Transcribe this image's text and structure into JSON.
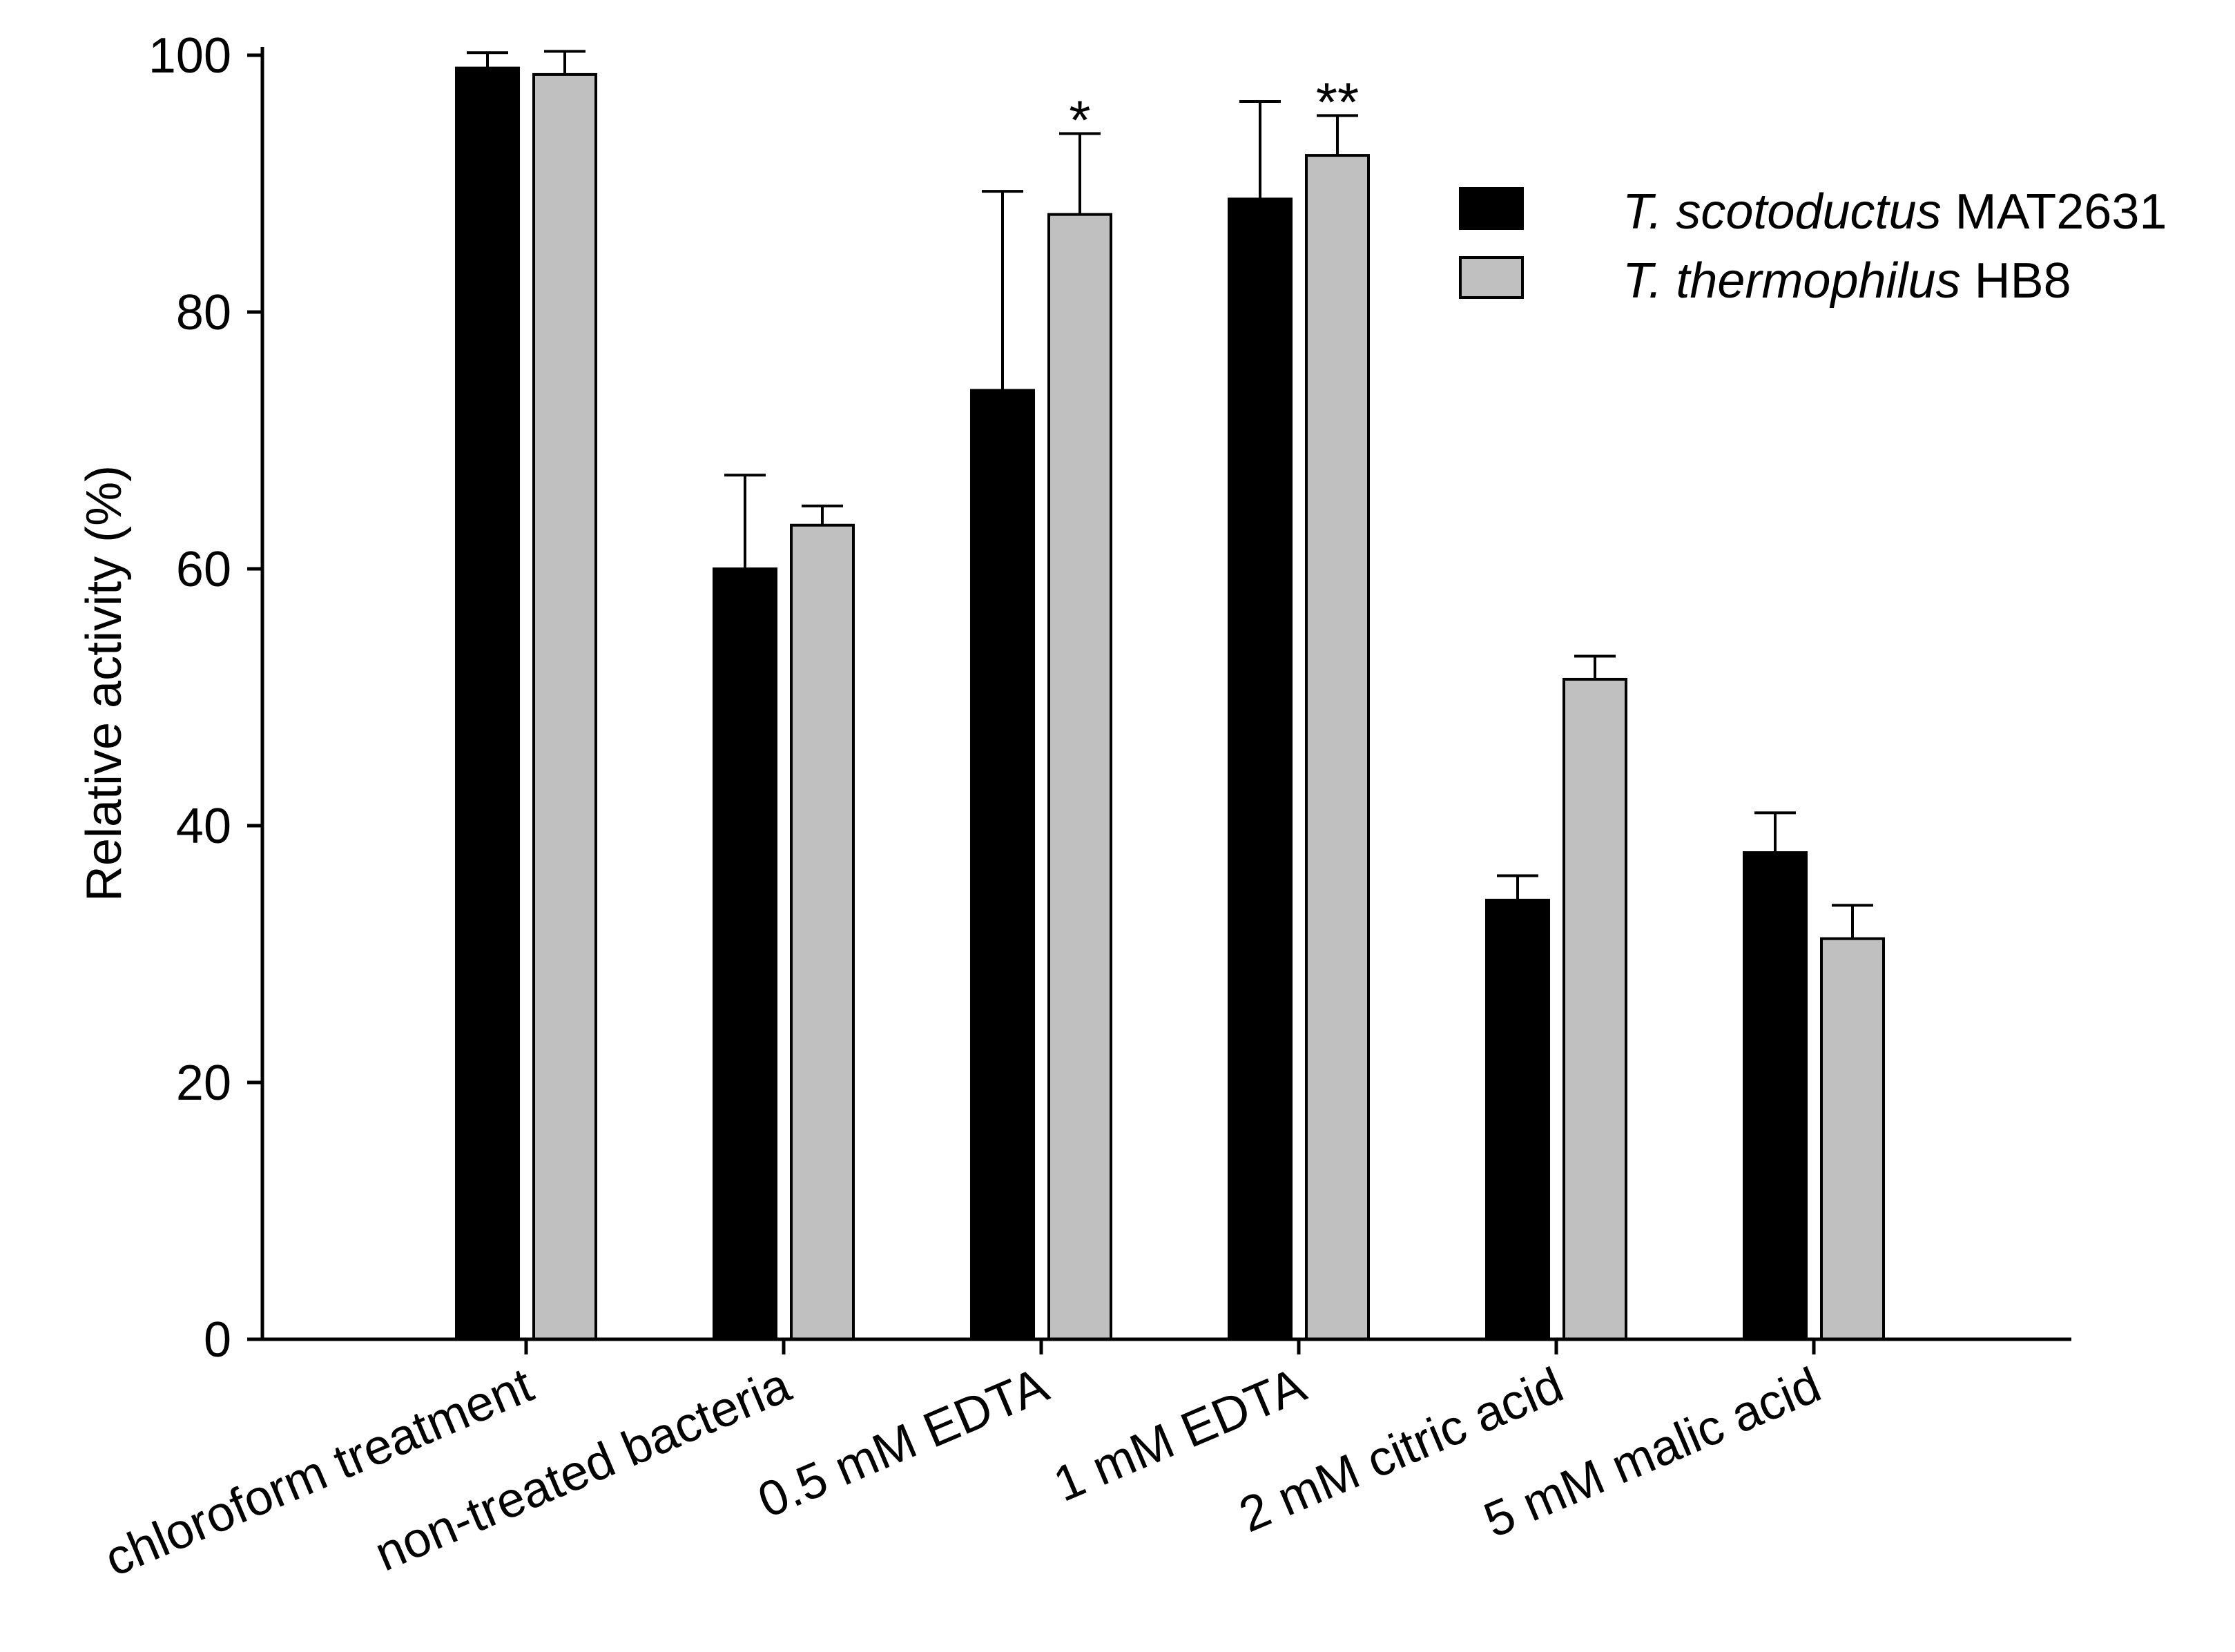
{
  "chart_data": {
    "type": "bar",
    "title": "",
    "xlabel": "",
    "ylabel": "Relative activity (%)",
    "ylim": [
      0,
      100
    ],
    "yticks": [
      0,
      20,
      40,
      60,
      80,
      100
    ],
    "categories": [
      "chloroform treatment",
      "non-treated bacteria",
      "0.5 mM EDTA",
      "1 mM EDTA",
      "2 mM citric acid",
      "5 mM malic acid"
    ],
    "series": [
      {
        "name": "T. scotoductus MAT2631",
        "species": "T. scotoductus",
        "strain": "MAT2631",
        "color": "#000000",
        "values": [
          99.0,
          60.0,
          73.9,
          88.8,
          34.2,
          37.9
        ],
        "errors": [
          1.2,
          7.3,
          15.5,
          7.6,
          1.9,
          3.1
        ]
      },
      {
        "name": "T. thermophilus HB8",
        "species": "T. thermophilus",
        "strain": "HB8",
        "color": "#c0c0c0",
        "values": [
          98.5,
          63.4,
          87.6,
          92.2,
          51.4,
          31.2
        ],
        "errors": [
          1.8,
          1.5,
          6.3,
          3.1,
          1.8,
          2.6
        ]
      }
    ],
    "significance": [
      {
        "category": "0.5 mM EDTA",
        "series": "T. thermophilus HB8",
        "label": "*"
      },
      {
        "category": "1 mM EDTA",
        "series": "T. thermophilus HB8",
        "label": "**"
      }
    ],
    "legend_position": "top-right",
    "grid": false
  }
}
